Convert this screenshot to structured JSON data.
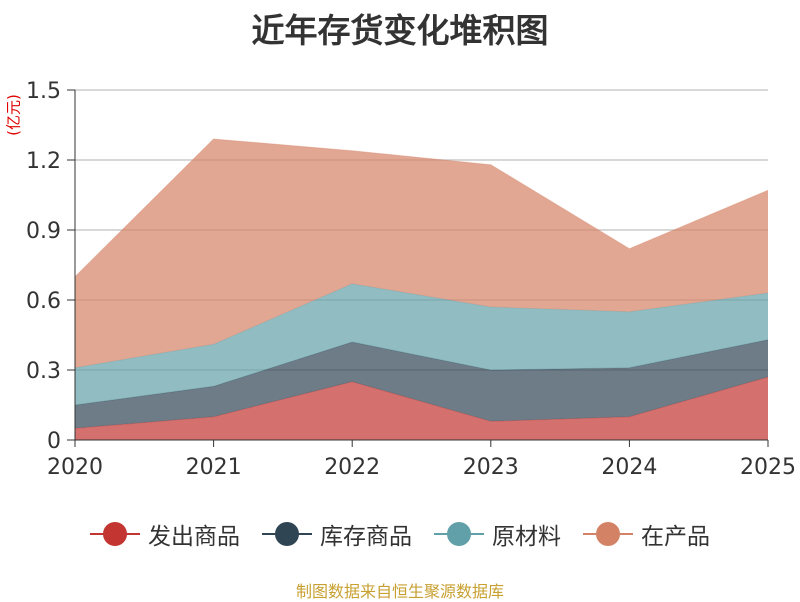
{
  "chart_data": {
    "type": "area",
    "stacked": true,
    "title": "近年存货变化堆积图",
    "ylabel": "(亿元)",
    "xlabel": "",
    "categories": [
      "2020",
      "2021",
      "2022",
      "2023",
      "2024",
      "2025"
    ],
    "ylim": [
      0,
      1.5
    ],
    "yticks": [
      "0",
      "0.3",
      "0.6",
      "0.9",
      "1.2",
      "1.5"
    ],
    "grid": true,
    "legend_position": "bottom",
    "series": [
      {
        "name": "发出商品",
        "color": "#c23531",
        "values": [
          0.05,
          0.1,
          0.25,
          0.08,
          0.1,
          0.27
        ]
      },
      {
        "name": "库存商品",
        "color": "#2f4554",
        "values": [
          0.1,
          0.13,
          0.17,
          0.22,
          0.21,
          0.16
        ]
      },
      {
        "name": "原材料",
        "color": "#61a0a8",
        "values": [
          0.16,
          0.18,
          0.25,
          0.27,
          0.24,
          0.2
        ]
      },
      {
        "name": "在产品",
        "color": "#d48265",
        "values": [
          0.39,
          0.88,
          0.57,
          0.61,
          0.27,
          0.44
        ]
      }
    ]
  },
  "source_note": "制图数据来自恒生聚源数据库"
}
